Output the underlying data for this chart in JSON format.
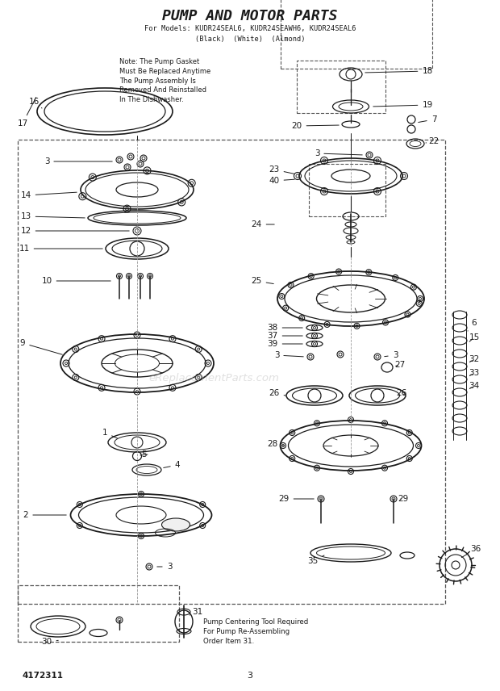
{
  "title": "PUMP AND MOTOR PARTS",
  "subtitle1": "For Models: KUDR24SEAL6, KUDR24SEAWH6, KUDR24SEAL6",
  "subtitle2": "(Black)  (White)  (Almond)",
  "note_text": "Note: The Pump Gasket\nMust Be Replaced Anytime\nThe Pump Assembly Is\nRemoved And Reinstalled\nIn The Dishwasher.",
  "bottom_left_text": "4172311",
  "bottom_center_text": "3",
  "bg_color": "#ffffff",
  "line_color": "#1a1a1a",
  "dashed_color": "#555555",
  "watermark": "eReplacementParts.com",
  "pump_tool_text": "Pump Centering Tool Required\nFor Pump Re-Assembling\nOrder Item 31."
}
